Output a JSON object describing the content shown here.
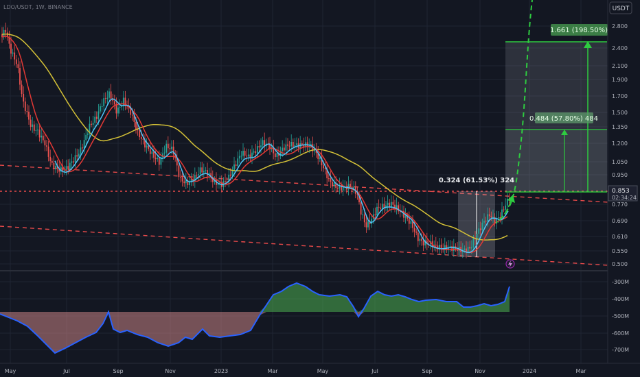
{
  "header": {
    "symbol_line": "LDO/USDT, 1W, BINANCE"
  },
  "currency_badge": "USDT",
  "price_axis": {
    "ticks": [
      "2.800",
      "2.400",
      "2.100",
      "1.900",
      "1.700",
      "1.500",
      "1.350",
      "1.200",
      "1.050",
      "0.950",
      "0.853",
      "0.770",
      "0.690",
      "0.610",
      "0.550",
      "0.500"
    ],
    "last_price": "0.853",
    "countdown": "02:34:24"
  },
  "indicator_axis": {
    "ticks": [
      "-300M",
      "-400M",
      "-500M",
      "-600M",
      "-700M"
    ]
  },
  "time_axis": {
    "ticks": [
      "May",
      "Jul",
      "Sep",
      "Nov",
      "2023",
      "Mar",
      "May",
      "Jul",
      "Sep",
      "Nov",
      "2024",
      "Mar"
    ]
  },
  "annotations": {
    "measure_small": "0.324 (61.53%) 324",
    "measure_mid": "0.484 (57.80%) 484",
    "measure_big": "1.661 (198.50%)"
  },
  "icons": {
    "lightning": "lightning-icon"
  },
  "colors": {
    "background": "#131722",
    "candle_up": "#26a69a",
    "candle_down": "#ef5350",
    "ma_fast": "#e53935",
    "ma_mid": "#4fc3f7",
    "ma_slow": "#d4c137",
    "projection": "#2ecc40",
    "support_lines": "#e84a4a",
    "indicator_line": "#2962ff"
  }
}
